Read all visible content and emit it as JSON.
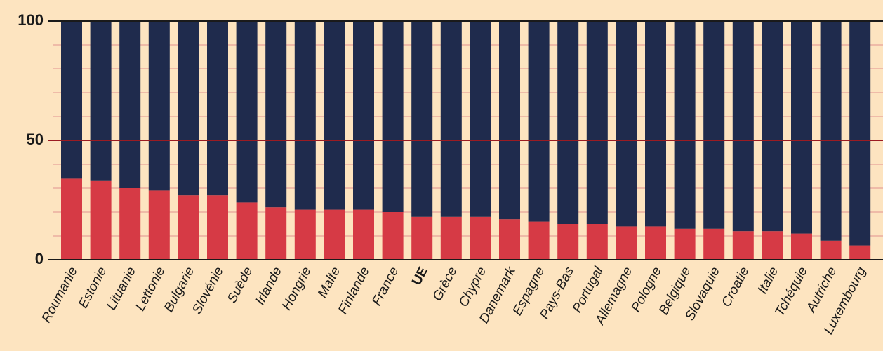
{
  "chart_data": {
    "type": "stacked_bar",
    "categories": [
      "Roumanie",
      "Estonie",
      "Lituanie",
      "Lettonie",
      "Bulgarie",
      "Slovénie",
      "Suède",
      "Irlande",
      "Hongrie",
      "Malte",
      "Finlande",
      "France",
      "UE",
      "Grèce",
      "Chypre",
      "Danemark",
      "Espagne",
      "Pays-Bas",
      "Portugal",
      "Allemagne",
      "Pologne",
      "Belgique",
      "Slovaquie",
      "Croatie",
      "Italie",
      "Tchéquie",
      "Autriche",
      "Luxembourg"
    ],
    "series": [
      {
        "color": "#d63a45",
        "values": [
          34,
          33,
          30,
          29,
          27,
          27,
          24,
          22,
          21,
          21,
          21,
          20,
          18,
          18,
          18,
          17,
          16,
          15,
          15,
          14,
          14,
          13,
          13,
          12,
          12,
          11,
          8,
          6
        ]
      },
      {
        "color": "#1f2b4d",
        "values": [
          66,
          67,
          70,
          71,
          73,
          73,
          76,
          78,
          79,
          79,
          79,
          80,
          82,
          82,
          82,
          83,
          84,
          85,
          85,
          86,
          86,
          87,
          87,
          88,
          88,
          89,
          92,
          94
        ]
      }
    ],
    "ylim": [
      0,
      100
    ],
    "yticks": [
      0,
      50,
      100
    ],
    "minor_yticks": [
      10,
      20,
      30,
      40,
      60,
      70,
      80,
      90
    ],
    "grid": true
  }
}
